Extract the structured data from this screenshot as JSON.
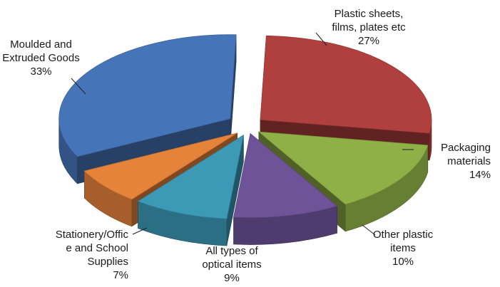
{
  "chart_data": {
    "type": "pie",
    "style": "3d-exploded",
    "slices": [
      {
        "label": "Plastic sheets, films, plates etc",
        "value": 27,
        "percent_label": "27%",
        "color": "#B0403D",
        "label_lines": [
          "Plastic sheets,",
          "films, plates etc"
        ]
      },
      {
        "label": "Packaging materials",
        "value": 14,
        "percent_label": "14%",
        "color": "#8FB046",
        "label_lines": [
          "Packaging",
          "materials"
        ]
      },
      {
        "label": "Other plastic items",
        "value": 10,
        "percent_label": "10%",
        "color": "#6E5399",
        "label_lines": [
          "Other plastic",
          "items"
        ]
      },
      {
        "label": "All types of optical items",
        "value": 9,
        "percent_label": "9%",
        "color": "#3C9AB7",
        "label_lines": [
          "All types of",
          "optical items"
        ]
      },
      {
        "label": "Stationery/Office and School Supplies",
        "value": 7,
        "percent_label": "7%",
        "color": "#E6833A",
        "label_lines": [
          "Stationery/Offic",
          "e and School",
          "Supplies"
        ]
      },
      {
        "label": "Moulded and Extruded Goods",
        "value": 33,
        "percent_label": "33%",
        "color": "#4674B8",
        "label_lines": [
          "Moulded and",
          "Extruded Goods"
        ]
      }
    ]
  }
}
